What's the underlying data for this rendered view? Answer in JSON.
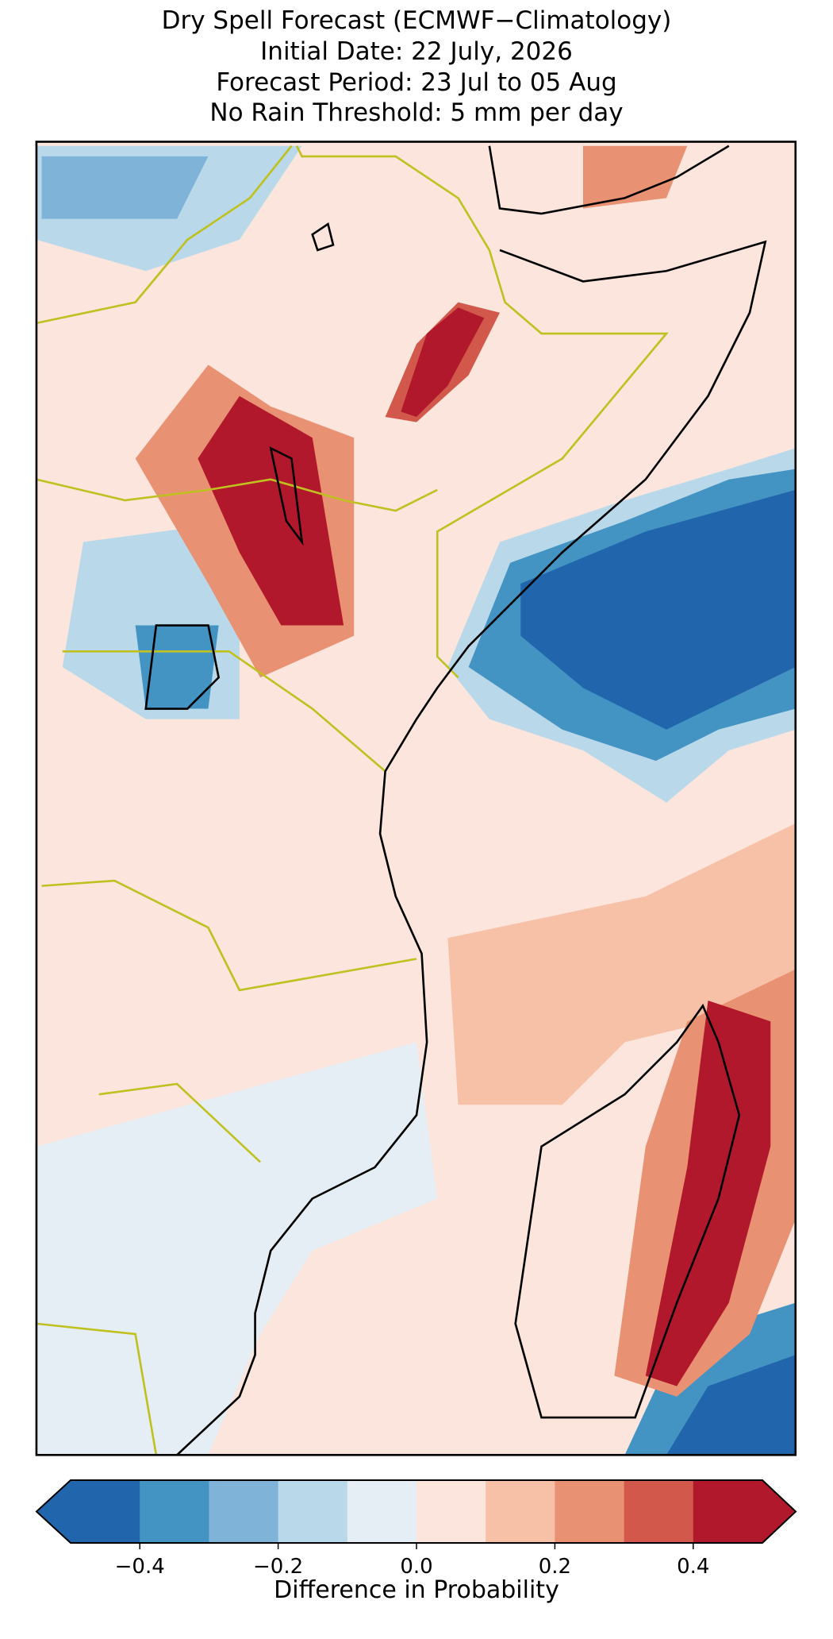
{
  "chart_data": {
    "type": "map",
    "title_lines": [
      "Dry Spell Forecast (ECMWF−Climatology)",
      "Initial Date: 22 July, 2026",
      "Forecast Period: 23 Jul to 05 Aug",
      "No Rain Threshold: 5 mm per day"
    ],
    "colorbar": {
      "label": "Difference in Probability",
      "xlim": [
        -0.5,
        0.5
      ],
      "levels": [
        -0.5,
        -0.4,
        -0.3,
        -0.2,
        -0.1,
        0,
        0.1,
        0.2,
        0.3,
        0.4,
        0.5
      ],
      "colors": [
        "#2166ac",
        "#4393c3",
        "#7fb4d8",
        "#b9d9ea",
        "#e5eef4",
        "#fbe5dc",
        "#f7c1a8",
        "#e99173",
        "#d1584a",
        "#b2182b"
      ],
      "extend": "both",
      "ticks": [
        {
          "value": -0.4,
          "label": "−0.4"
        },
        {
          "value": -0.2,
          "label": "−0.2"
        },
        {
          "value": 0,
          "label": "0.0"
        },
        0.2,
        0.4
      ]
    }
  }
}
